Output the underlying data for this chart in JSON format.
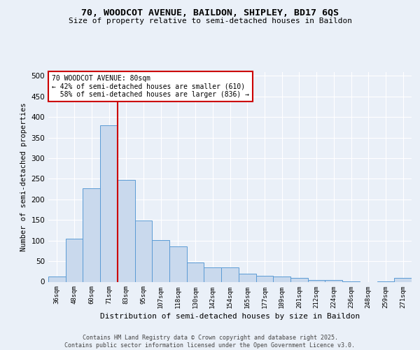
{
  "title1": "70, WOODCOT AVENUE, BAILDON, SHIPLEY, BD17 6QS",
  "title2": "Size of property relative to semi-detached houses in Baildon",
  "xlabel": "Distribution of semi-detached houses by size in Baildon",
  "ylabel": "Number of semi-detached properties",
  "bar_labels": [
    "36sqm",
    "48sqm",
    "60sqm",
    "71sqm",
    "83sqm",
    "95sqm",
    "107sqm",
    "118sqm",
    "130sqm",
    "142sqm",
    "154sqm",
    "165sqm",
    "177sqm",
    "189sqm",
    "201sqm",
    "212sqm",
    "224sqm",
    "236sqm",
    "248sqm",
    "259sqm",
    "271sqm"
  ],
  "bar_values": [
    12,
    105,
    227,
    380,
    247,
    148,
    102,
    86,
    47,
    35,
    35,
    20,
    14,
    12,
    10,
    5,
    4,
    1,
    0,
    1,
    9
  ],
  "bar_color": "#c9d9ed",
  "bar_edge_color": "#5b9bd5",
  "property_label": "70 WOODCOT AVENUE: 80sqm",
  "pct_smaller": 42,
  "count_smaller": 610,
  "pct_larger": 58,
  "count_larger": 836,
  "vline_x_index": 3.5,
  "ylim": [
    0,
    510
  ],
  "yticks": [
    0,
    50,
    100,
    150,
    200,
    250,
    300,
    350,
    400,
    450,
    500
  ],
  "annotation_box_color": "#ffffff",
  "annotation_box_edge": "#cc0000",
  "vline_color": "#cc0000",
  "footer1": "Contains HM Land Registry data © Crown copyright and database right 2025.",
  "footer2": "Contains public sector information licensed under the Open Government Licence v3.0.",
  "bg_color": "#eaf0f8"
}
